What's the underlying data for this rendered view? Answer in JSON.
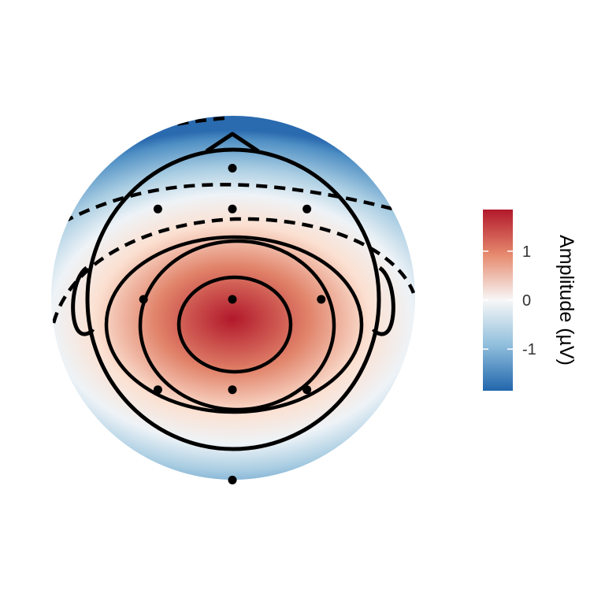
{
  "chart_data": {
    "type": "heatmap",
    "title": "",
    "legend": {
      "title": "Amplitude (µV)",
      "ticks": [
        1,
        0,
        -1
      ],
      "tick_labels": [
        "1",
        "0",
        "-1"
      ],
      "range": [
        -1.85,
        1.85
      ],
      "placement": "right",
      "colors": {
        "high": "#b2182b",
        "mid_high": "#f4a582",
        "mid": "#f7f7f7",
        "mid_low": "#92c5de",
        "low": "#2166ac"
      }
    },
    "peak": {
      "x": 0.0,
      "y": -0.15,
      "value": 1.85
    },
    "contours": [
      {
        "level": 1.5,
        "style": "solid"
      },
      {
        "level": 0.8,
        "style": "solid"
      },
      {
        "level": 0.2,
        "style": "solid"
      },
      {
        "level": -0.6,
        "style": "dashed"
      },
      {
        "level": -1.1,
        "style": "dashed"
      }
    ],
    "electrodes": [
      {
        "x": 0.0,
        "y": 0.9
      },
      {
        "x": -0.52,
        "y": 0.62
      },
      {
        "x": 0.0,
        "y": 0.62
      },
      {
        "x": 0.52,
        "y": 0.62
      },
      {
        "x": -0.62,
        "y": 0.0
      },
      {
        "x": 0.0,
        "y": 0.0
      },
      {
        "x": 0.62,
        "y": 0.0
      },
      {
        "x": -0.52,
        "y": -0.62
      },
      {
        "x": 0.0,
        "y": -0.62
      },
      {
        "x": 0.52,
        "y": -0.62
      },
      {
        "x": 0.0,
        "y": -1.24
      }
    ],
    "head_outline": true,
    "ears": true,
    "nose": true,
    "grid": false
  }
}
